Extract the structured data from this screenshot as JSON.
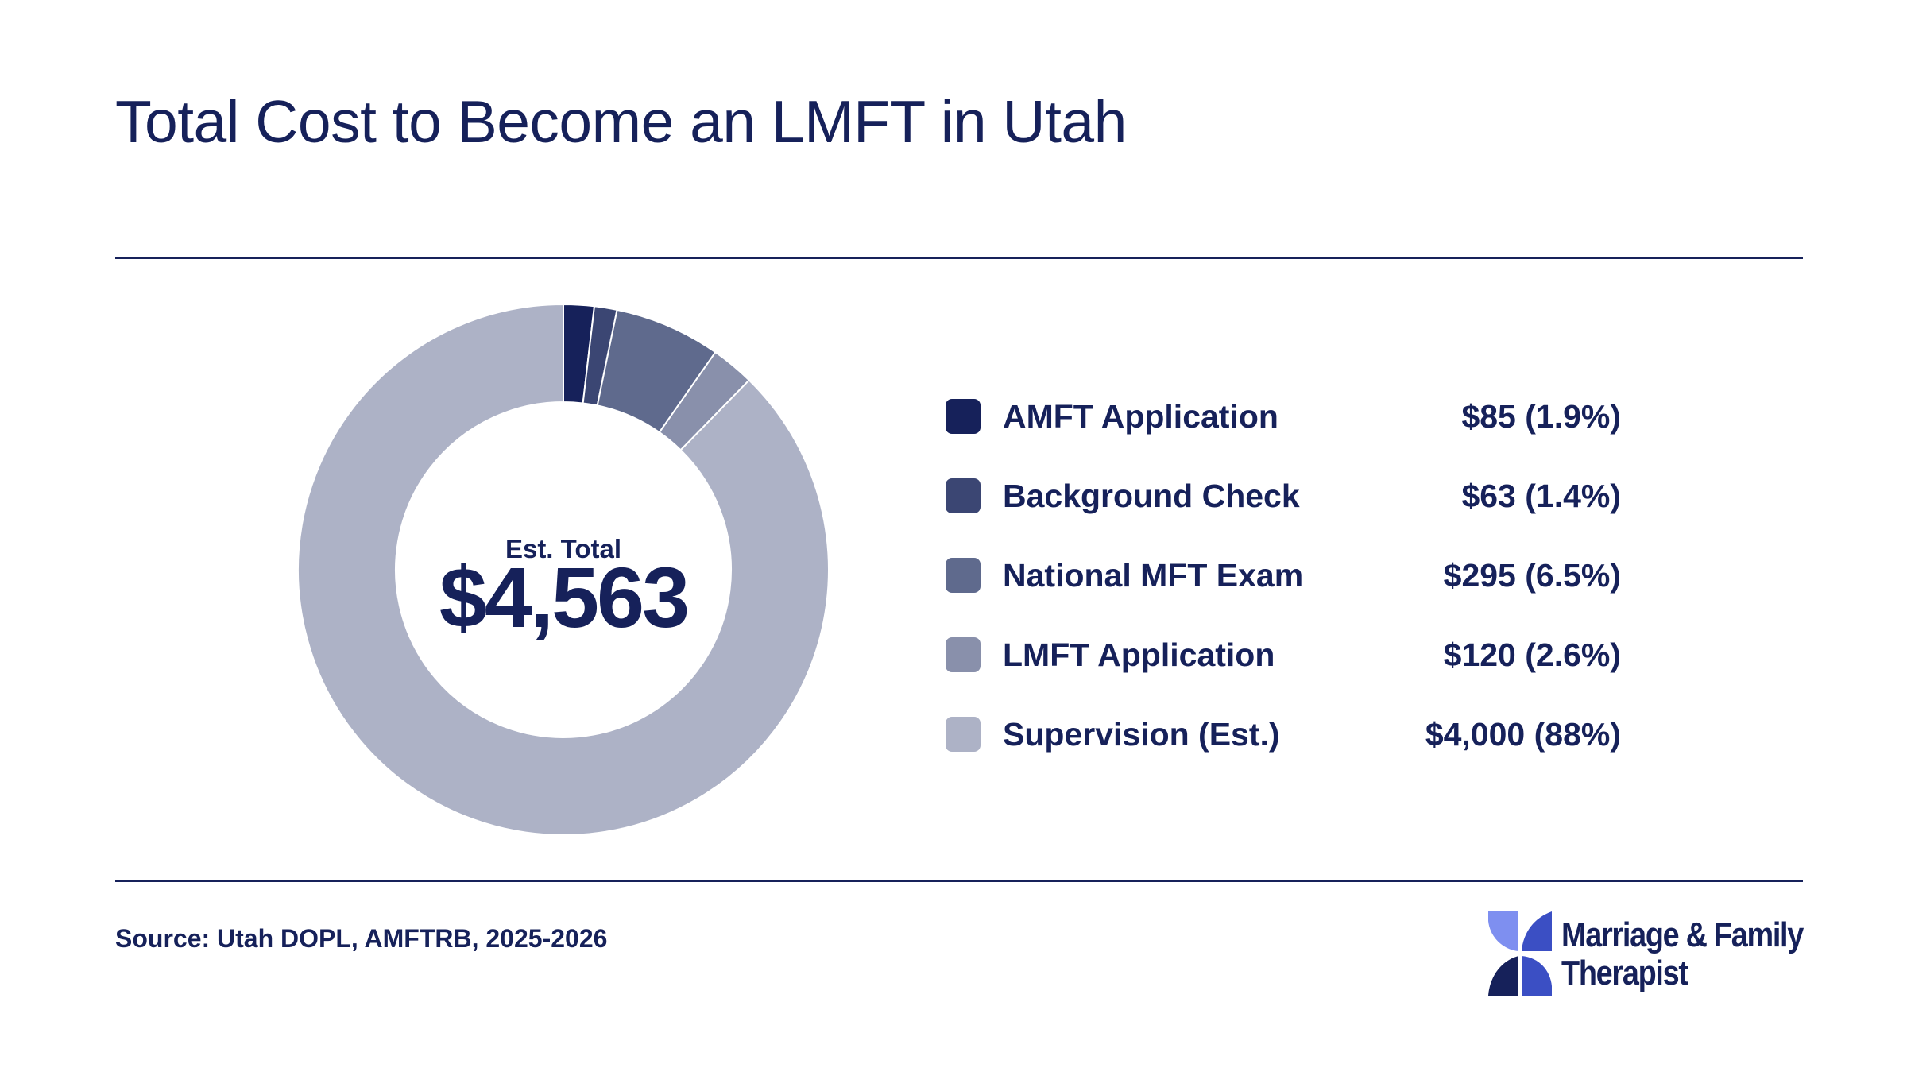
{
  "header": {
    "title": "Total Cost to Become an LMFT in Utah"
  },
  "center": {
    "label": "Est. Total",
    "value": "$4,563"
  },
  "legend": [
    {
      "name": "AMFT Application",
      "value_label": "$85 (1.9%)",
      "color": "#16215a"
    },
    {
      "name": "Background Check",
      "value_label": "$63 (1.4%)",
      "color": "#3b4673"
    },
    {
      "name": "National MFT Exam",
      "value_label": "$295 (6.5%)",
      "color": "#5f6a8d"
    },
    {
      "name": "LMFT Application",
      "value_label": "$120 (2.6%)",
      "color": "#8990ab"
    },
    {
      "name": "Supervision (Est.)",
      "value_label": "$4,000 (88%)",
      "color": "#adb2c6"
    }
  ],
  "footer": {
    "source": "Source: Utah DOPL, AMFTRB, 2025-2026"
  },
  "brand": {
    "line1": "Marriage & Family",
    "line2": "Therapist",
    "colors": {
      "light": "#7e8ff0",
      "mid": "#3b4fc4",
      "dark": "#16215a"
    }
  },
  "chart_data": {
    "type": "pie",
    "variant": "donut",
    "title": "Total Cost to Become an LMFT in Utah",
    "total_label": "Est. Total",
    "total": 4563,
    "categories": [
      "AMFT Application",
      "Background Check",
      "National MFT Exam",
      "LMFT Application",
      "Supervision (Est.)"
    ],
    "values": [
      85,
      63,
      295,
      120,
      4000
    ],
    "percent_labels": [
      "1.9%",
      "1.4%",
      "6.5%",
      "2.6%",
      "88%"
    ],
    "colors": [
      "#16215a",
      "#3b4673",
      "#5f6a8d",
      "#8990ab",
      "#adb2c6"
    ],
    "legend_position": "right"
  }
}
